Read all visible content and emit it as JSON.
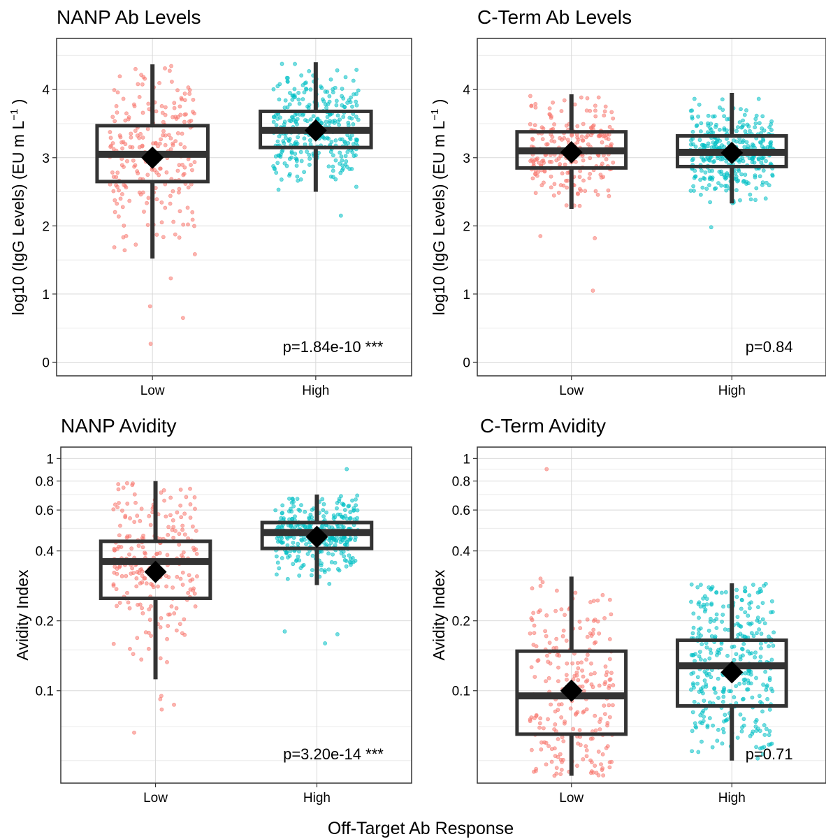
{
  "x_axis_label": "Off-Target Ab Response",
  "colors": {
    "low": "#F8766D",
    "high": "#00BFC4",
    "box": "#333333",
    "mean": "#000000",
    "grid": "#d9d9d9",
    "panel_border": "#333333"
  },
  "chart_data": [
    {
      "type": "boxplot",
      "title": "NANP Ab Levels",
      "ylabel": "log10 (IgG Levels) (EU m L",
      "ylabel_sup": "−1",
      "ylabel_close": " )",
      "categories": [
        "Low",
        "High"
      ],
      "y_scale": "linear",
      "ylim": [
        -0.2,
        4.75
      ],
      "y_ticks": [
        0,
        1,
        2,
        3,
        4
      ],
      "y_tick_labels": [
        "0",
        "1",
        "2",
        "3",
        "4"
      ],
      "grid": true,
      "p_value": "p=1.84e-10 ***",
      "series": [
        {
          "category": "Low",
          "min": 1.52,
          "q1": 2.65,
          "median": 3.05,
          "q3": 3.47,
          "max": 4.37,
          "mean": 3.0,
          "n": 230,
          "outliers": [
            0.27,
            0.65,
            0.82,
            1.23
          ]
        },
        {
          "category": "High",
          "min": 2.5,
          "q1": 3.15,
          "median": 3.4,
          "q3": 3.68,
          "max": 4.4,
          "mean": 3.4,
          "n": 320,
          "outliers": [
            2.15
          ]
        }
      ]
    },
    {
      "type": "boxplot",
      "title": "C-Term Ab Levels",
      "ylabel": "log10 (IgG Levels) (EU m L",
      "ylabel_sup": "−1",
      "ylabel_close": " )",
      "categories": [
        "Low",
        "High"
      ],
      "y_scale": "linear",
      "ylim": [
        -0.2,
        4.75
      ],
      "y_ticks": [
        0,
        1,
        2,
        3,
        4
      ],
      "y_tick_labels": [
        "0",
        "1",
        "2",
        "3",
        "4"
      ],
      "grid": true,
      "p_value": "p=0.84",
      "series": [
        {
          "category": "Low",
          "min": 2.25,
          "q1": 2.85,
          "median": 3.1,
          "q3": 3.38,
          "max": 3.93,
          "mean": 3.08,
          "n": 240,
          "outliers": [
            1.05,
            1.82,
            1.85
          ]
        },
        {
          "category": "High",
          "min": 2.33,
          "q1": 2.87,
          "median": 3.08,
          "q3": 3.32,
          "max": 3.95,
          "mean": 3.07,
          "n": 340,
          "outliers": [
            1.98
          ]
        }
      ]
    },
    {
      "type": "boxplot",
      "title": "NANP Avidity",
      "ylabel": "Avidity Index",
      "categories": [
        "Low",
        "High"
      ],
      "y_scale": "log",
      "ylim": [
        0.04,
        1.12
      ],
      "y_ticks": [
        0.1,
        0.2,
        0.4,
        0.6,
        0.8,
        1
      ],
      "y_tick_labels": [
        "0.1",
        "0.2",
        "0.4",
        "0.6",
        "0.8",
        "1"
      ],
      "grid": true,
      "p_value": "p=3.20e-14 ***",
      "series": [
        {
          "category": "Low",
          "min": 0.112,
          "q1": 0.25,
          "median": 0.36,
          "q3": 0.44,
          "max": 0.8,
          "mean": 0.325,
          "n": 230,
          "outliers": [
            0.066,
            0.083,
            0.087,
            0.092,
            0.095
          ]
        },
        {
          "category": "High",
          "min": 0.285,
          "q1": 0.41,
          "median": 0.48,
          "q3": 0.53,
          "max": 0.7,
          "mean": 0.46,
          "n": 320,
          "outliers": [
            0.16,
            0.175,
            0.18,
            0.9
          ]
        }
      ]
    },
    {
      "type": "boxplot",
      "title": "C-Term Avidity",
      "ylabel": "Avidity Index",
      "categories": [
        "Low",
        "High"
      ],
      "y_scale": "log",
      "ylim": [
        0.04,
        1.12
      ],
      "y_ticks": [
        0.1,
        0.2,
        0.4,
        0.6,
        0.8,
        1
      ],
      "y_tick_labels": [
        "0.1",
        "0.2",
        "0.4",
        "0.6",
        "0.8",
        "1"
      ],
      "grid": true,
      "p_value": "p=0.71",
      "series": [
        {
          "category": "Low",
          "min": 0.043,
          "q1": 0.065,
          "median": 0.095,
          "q3": 0.148,
          "max": 0.31,
          "mean": 0.1,
          "n": 240,
          "outliers": [
            0.9
          ]
        },
        {
          "category": "High",
          "min": 0.05,
          "q1": 0.086,
          "median": 0.128,
          "q3": 0.165,
          "max": 0.29,
          "mean": 0.12,
          "n": 340,
          "outliers": []
        }
      ]
    }
  ]
}
